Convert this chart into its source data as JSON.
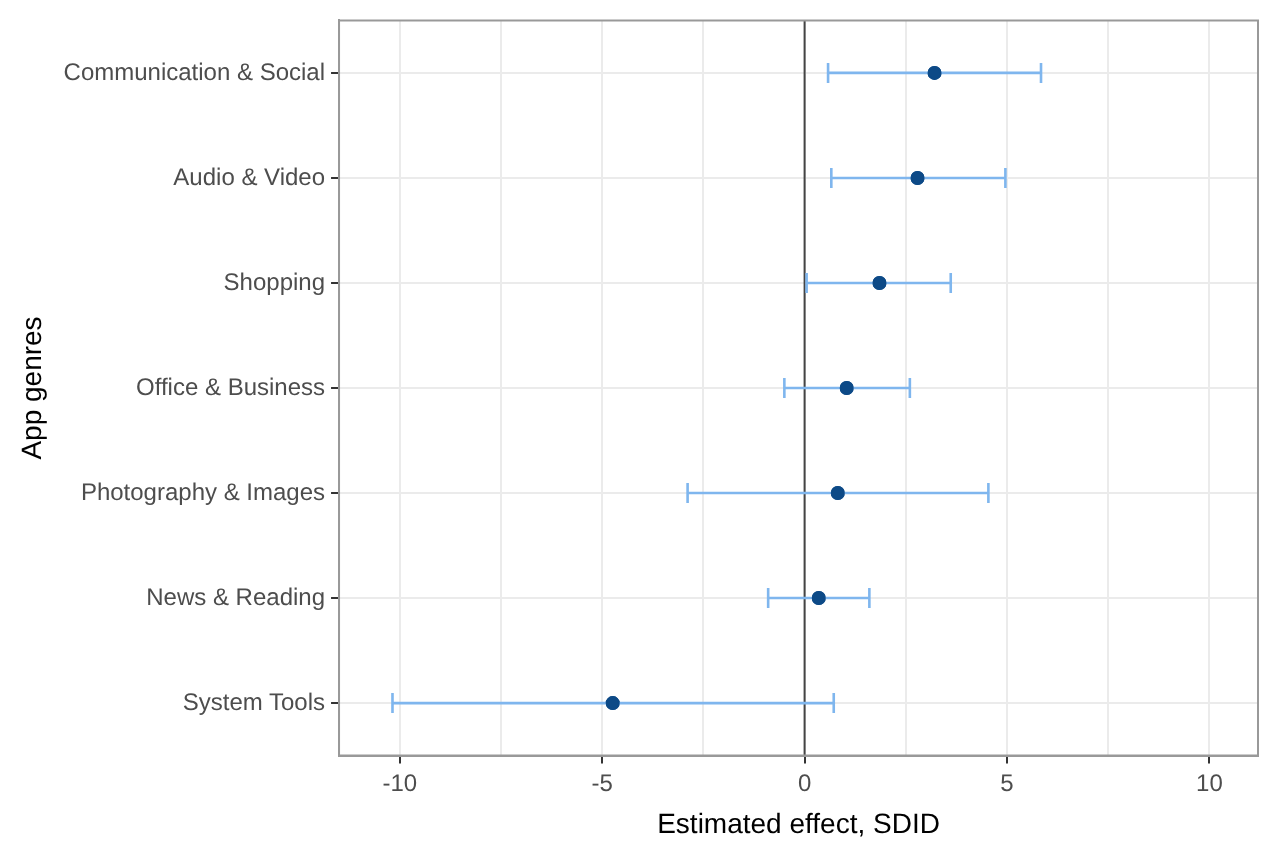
{
  "chart_data": {
    "type": "scatter",
    "orientation": "horizontal",
    "xlabel": "Estimated effect, SDID",
    "ylabel": "App genres",
    "categories": [
      "Communication & Social",
      "Audio & Video",
      "Shopping",
      "Office & Business",
      "Photography & Images",
      "News & Reading",
      "System Tools"
    ],
    "values": [
      3.21,
      2.79,
      1.85,
      1.04,
      0.82,
      0.35,
      -4.74
    ],
    "errors": [
      [
        0.58,
        5.84
      ],
      [
        0.66,
        4.96
      ],
      [
        0.05,
        3.61
      ],
      [
        -0.5,
        2.6
      ],
      [
        -2.89,
        4.54
      ],
      [
        -0.9,
        1.6
      ],
      [
        -10.18,
        0.72
      ]
    ],
    "color": "#0d4a87",
    "xlim": [
      -11.5,
      11.2
    ],
    "xticks": [
      -10,
      {
        "value": -7.5,
        "label": null
      },
      -5,
      {
        "value": -2.5,
        "label": null
      },
      0,
      {
        "value": 2.5,
        "label": null
      },
      5,
      {
        "value": 7.5,
        "label": null
      },
      10
    ],
    "ref_lines": [
      {
        "axis": "x",
        "value": 0,
        "color": "#444444"
      }
    ],
    "grid": true,
    "legend": false,
    "marker": "circle"
  }
}
